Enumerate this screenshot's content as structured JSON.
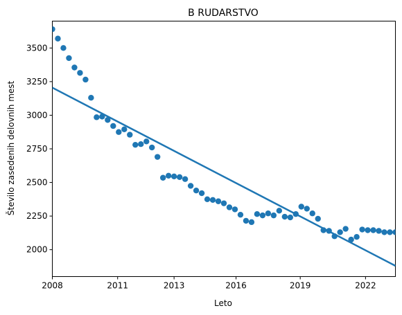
{
  "chart_data": {
    "type": "scatter",
    "title": "B RUDARSTVO",
    "xlabel": "Leto",
    "ylabel": "Število zasedenih delovnih mest",
    "xlim": [
      2007.6,
      2023.1
    ],
    "ylim": [
      1800,
      3700
    ],
    "x_tick_labels": [
      "2008",
      "2011",
      "2013",
      "2016",
      "2019",
      "2022"
    ],
    "x_tick_values": [
      2007.6,
      2010.55,
      2013.1,
      2015.9,
      2018.8,
      2021.75
    ],
    "y_ticks": [
      2000,
      2250,
      2500,
      2750,
      3000,
      3250,
      3500
    ],
    "grid": false,
    "legend": "none",
    "color": "#1f77b4",
    "series": [
      {
        "kind": "points",
        "x": [
          2007.6,
          2007.85,
          2008.1,
          2008.35,
          2008.6,
          2008.85,
          2009.1,
          2009.35,
          2009.6,
          2009.85,
          2010.1,
          2010.35,
          2010.6,
          2010.85,
          2011.1,
          2011.35,
          2011.6,
          2011.85,
          2012.1,
          2012.35,
          2012.6,
          2012.85,
          2013.1,
          2013.35,
          2013.6,
          2013.85,
          2014.1,
          2014.35,
          2014.6,
          2014.85,
          2015.1,
          2015.35,
          2015.6,
          2015.85,
          2016.1,
          2016.35,
          2016.6,
          2016.85,
          2017.1,
          2017.35,
          2017.6,
          2017.85,
          2018.1,
          2018.35,
          2018.6,
          2018.85,
          2019.1,
          2019.35,
          2019.6,
          2019.85,
          2020.1,
          2020.35,
          2020.6,
          2020.85,
          2021.1,
          2021.35,
          2021.6,
          2021.85,
          2022.1,
          2022.35,
          2022.6,
          2022.85,
          2023.1
        ],
        "y": [
          3640,
          3570,
          3500,
          3425,
          3355,
          3315,
          3265,
          3130,
          2985,
          2990,
          2965,
          2920,
          2875,
          2895,
          2855,
          2780,
          2785,
          2805,
          2760,
          2690,
          2535,
          2550,
          2545,
          2540,
          2525,
          2475,
          2440,
          2420,
          2375,
          2370,
          2360,
          2345,
          2315,
          2300,
          2260,
          2215,
          2205,
          2265,
          2255,
          2270,
          2255,
          2290,
          2245,
          2240,
          2265,
          2320,
          2305,
          2270,
          2230,
          2145,
          2140,
          2100,
          2130,
          2155,
          2075,
          2095,
          2150,
          2145,
          2145,
          2140,
          2130,
          2130,
          2130
        ]
      },
      {
        "kind": "trend-line",
        "x": [
          2007.6,
          2023.1
        ],
        "y": [
          3205,
          1880
        ]
      }
    ]
  }
}
